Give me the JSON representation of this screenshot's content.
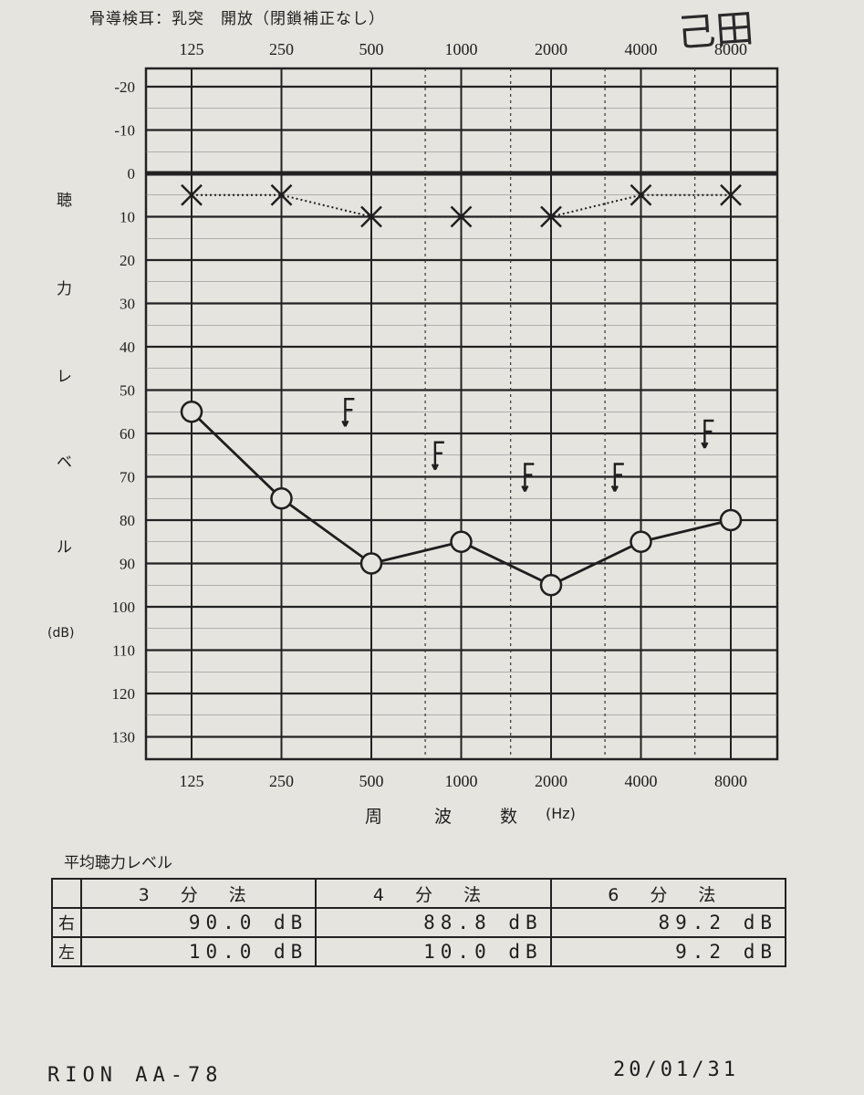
{
  "header": {
    "title": "骨導検耳：乳突　開放（閉鎖補正なし）",
    "handwritten": "己田"
  },
  "axis": {
    "y_label_chars": [
      "聴",
      "力",
      "レ",
      "ベ",
      "ル",
      "(dB)"
    ],
    "x_label_chars": [
      "周",
      "波",
      "数",
      "(Hz)"
    ]
  },
  "chart_data": {
    "type": "line",
    "x_categories": [
      "125",
      "250",
      "500",
      "1000",
      "2000",
      "4000",
      "8000"
    ],
    "y_ticks": [
      "-20",
      "-10",
      "0",
      "10",
      "20",
      "30",
      "40",
      "50",
      "60",
      "70",
      "80",
      "90",
      "100",
      "110",
      "120",
      "130"
    ],
    "ylim": [
      -20,
      130
    ],
    "y_inverted": true,
    "series": [
      {
        "marker": "x",
        "values": [
          5,
          5,
          10,
          10,
          10,
          5,
          5
        ],
        "line": "dotted"
      },
      {
        "marker": "o",
        "values": [
          55,
          75,
          90,
          85,
          95,
          85,
          80
        ],
        "line": "solid"
      }
    ],
    "bone_conduction": {
      "marker": "F-arrow",
      "x_positions": [
        1.75,
        2.75,
        3.75,
        4.75,
        5.75
      ],
      "values": [
        55,
        65,
        70,
        70,
        60
      ]
    }
  },
  "average": {
    "title": "平均聴力レベル",
    "columns": [
      "3 分 法",
      "4 分 法",
      "6 分 法"
    ],
    "rows": [
      {
        "label": "右",
        "values": [
          "90.0 dB",
          "88.8 dB",
          "89.2 dB"
        ]
      },
      {
        "label": "左",
        "values": [
          "10.0 dB",
          "10.0 dB",
          "9.2 dB"
        ]
      }
    ]
  },
  "footer": {
    "model": "RION AA-78",
    "date": "20/01/31"
  }
}
